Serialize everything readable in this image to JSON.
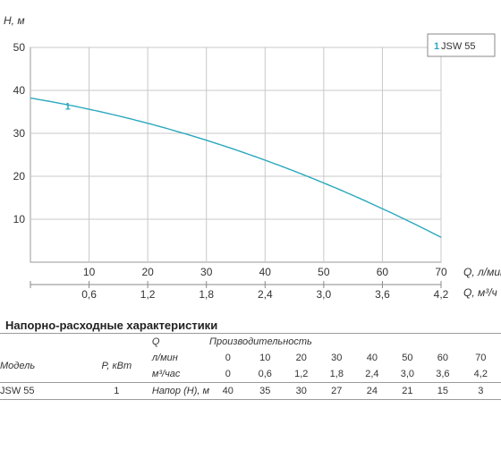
{
  "chart_data": {
    "type": "line",
    "ylabel": "H, м",
    "xlabel": "Q, л/мин",
    "x2label": "Q, м³/ч",
    "xlim": [
      0,
      70
    ],
    "ylim": [
      0,
      50
    ],
    "yticks": [
      10,
      20,
      30,
      40,
      50
    ],
    "xticks": [
      10,
      20,
      30,
      40,
      50,
      60,
      70
    ],
    "x2ticks": [
      "0,6",
      "1,2",
      "1,8",
      "2,4",
      "3,0",
      "3,6",
      "4,2"
    ],
    "grid": true,
    "legend_position": "top-right",
    "series": [
      {
        "name": "JSW 55",
        "label": "1",
        "color": "#2aa8bd",
        "x": [
          0,
          10,
          20,
          30,
          40,
          50,
          60,
          70
        ],
        "y": [
          40,
          35,
          30,
          27,
          24,
          21,
          15,
          3
        ]
      }
    ]
  },
  "table": {
    "title": "Напорно-расходные характеристики",
    "header_q": "Q",
    "header_perf": "Производительность",
    "col_model": "Модель",
    "col_power": "P, кВт",
    "row_lmin_label": "л/мин",
    "row_m3h_label": "м³/час",
    "row_head_label": "Напор (Н), м",
    "lmin_values": [
      "0",
      "10",
      "20",
      "30",
      "40",
      "50",
      "60",
      "70"
    ],
    "m3h_values": [
      "0",
      "0,6",
      "1,2",
      "1,8",
      "2,4",
      "3,0",
      "3,6",
      "4,2"
    ],
    "model": "JSW 55",
    "power": "1",
    "head_values": [
      "40",
      "35",
      "30",
      "27",
      "24",
      "21",
      "15",
      "3"
    ]
  }
}
